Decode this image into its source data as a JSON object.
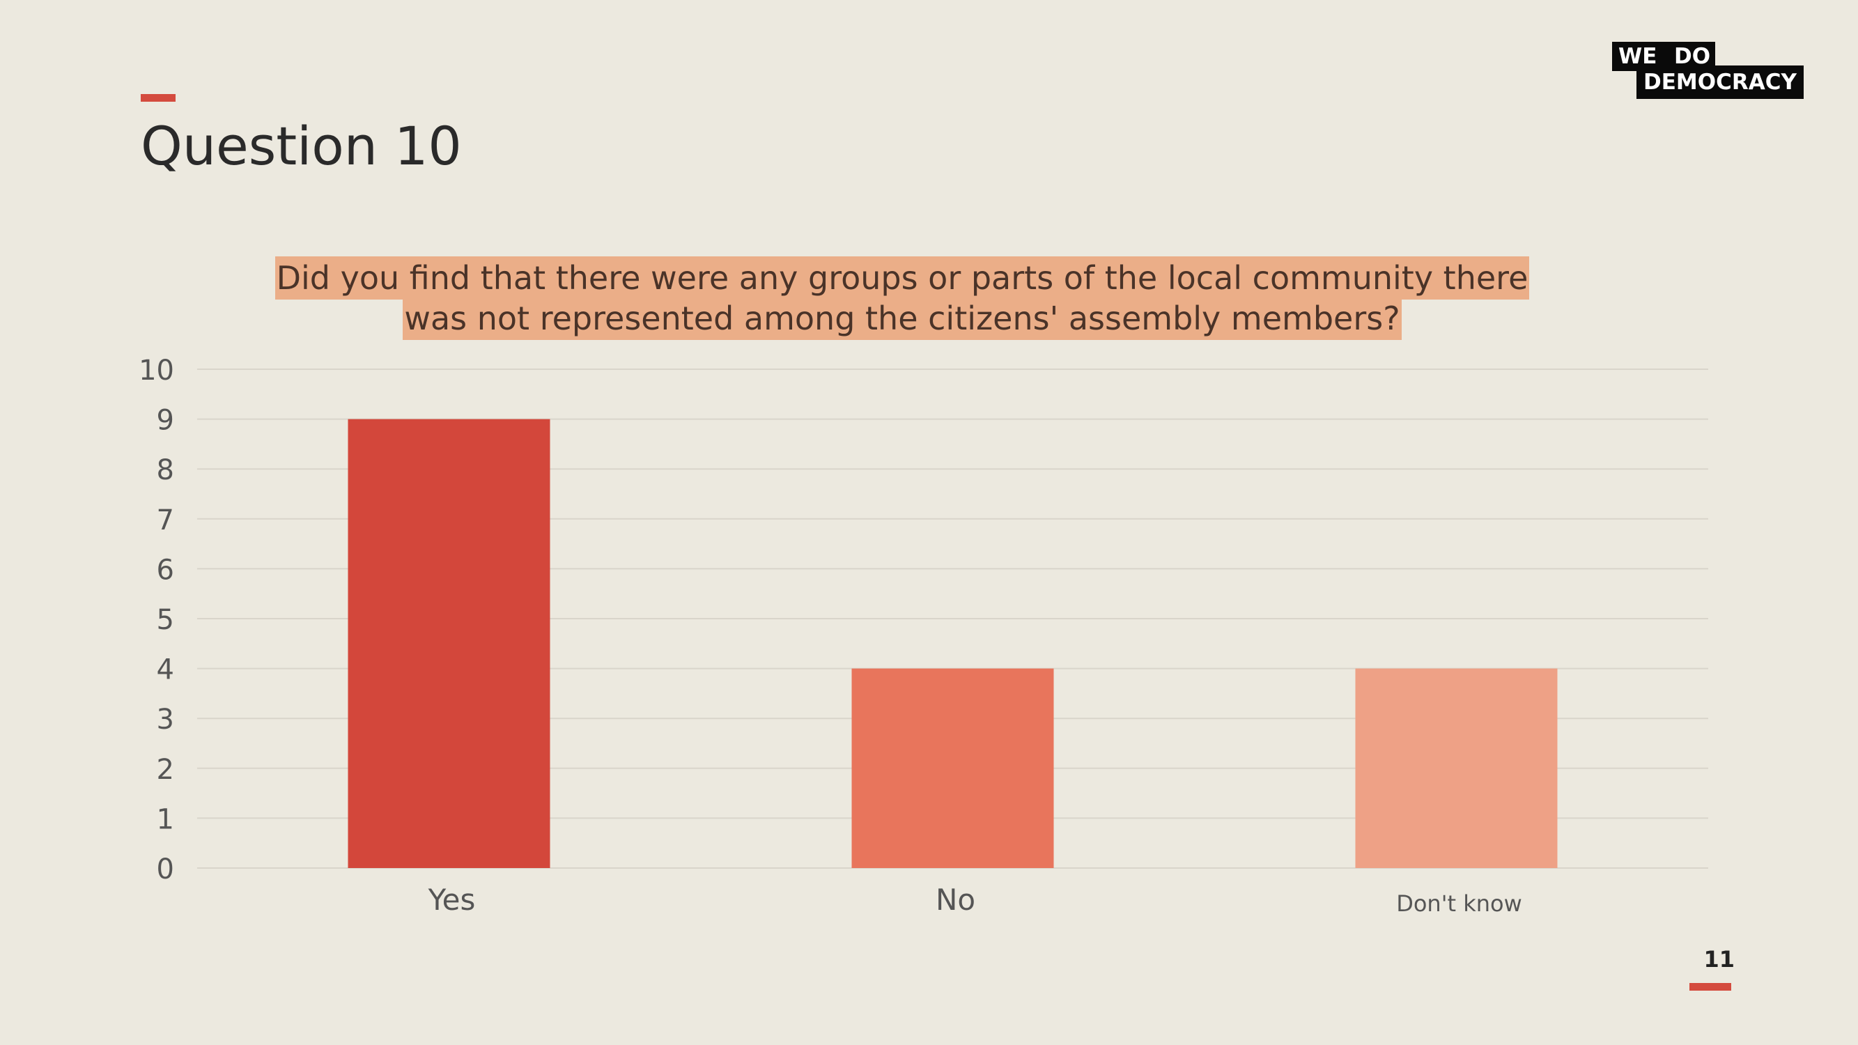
{
  "slide": {
    "title": "Question 10",
    "page_number": "11",
    "accent_color": "#D44B3E"
  },
  "logo": {
    "line1_left": "WE",
    "line1_right": "DO",
    "line2": "DEMOCRACY"
  },
  "chart_data": {
    "type": "bar",
    "title_lines": [
      "Did you find that there were any groups or parts of the local community there",
      "was not represented among the citizens' assembly members?"
    ],
    "categories": [
      "Yes",
      "No",
      "Don't know"
    ],
    "values": [
      9,
      4,
      4
    ],
    "bar_colors": [
      "#D3473B",
      "#E8755C",
      "#EEA186"
    ],
    "ylim": [
      0,
      10
    ],
    "yticks": [
      "0",
      "1",
      "2",
      "3",
      "4",
      "5",
      "6",
      "7",
      "8",
      "9",
      "10"
    ],
    "grid": true,
    "legend": "none",
    "xlabel": "",
    "ylabel": ""
  }
}
